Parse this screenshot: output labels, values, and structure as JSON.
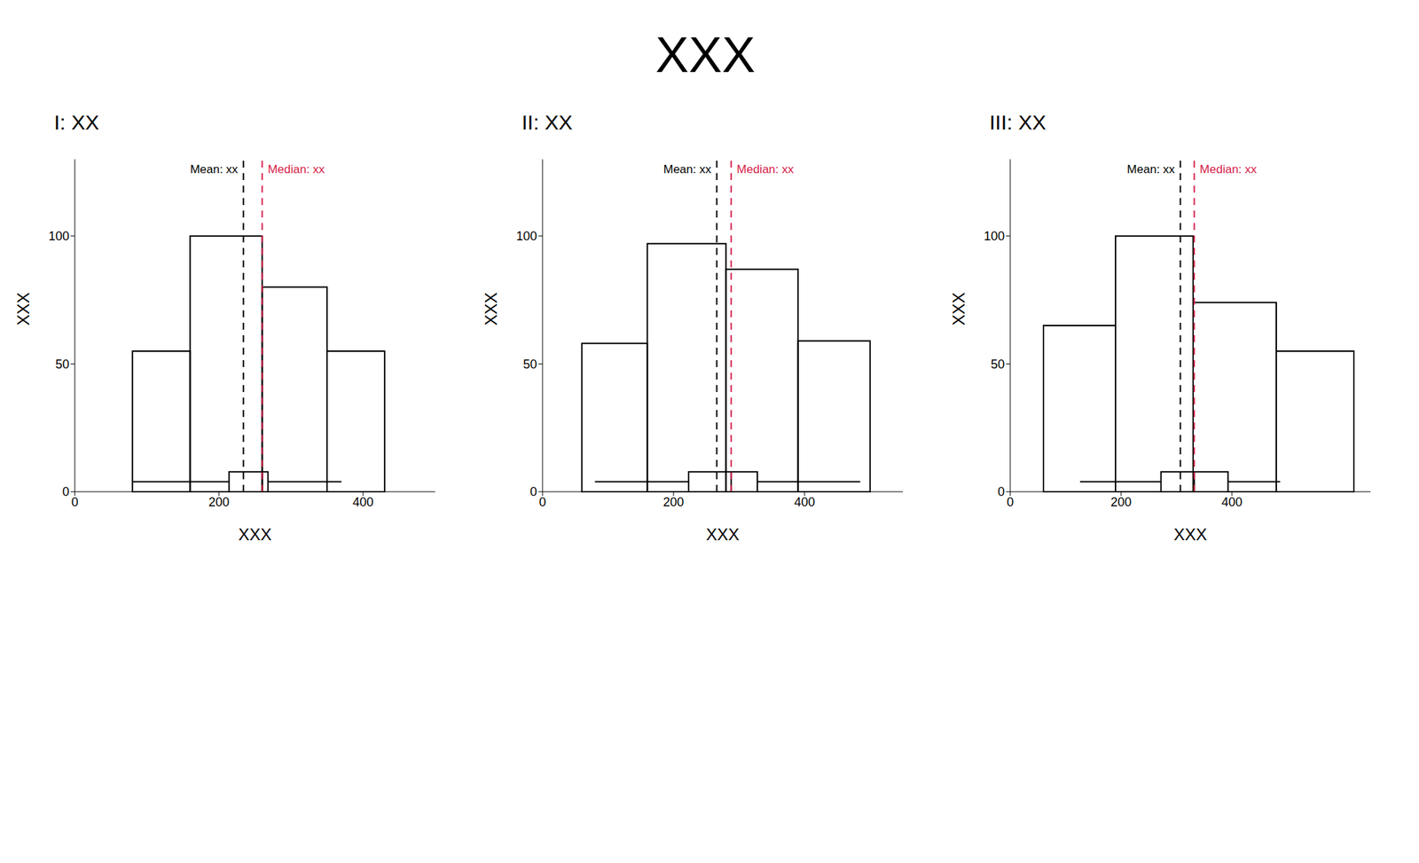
{
  "title": "XXX",
  "chart_data": [
    {
      "type": "histogram",
      "title": "I: XX",
      "x_label": "XXX",
      "y_label": "XXX",
      "color": "#000000",
      "grid": false,
      "bins": [
        80,
        160,
        260,
        350,
        430
      ],
      "counts": [
        55,
        100,
        80,
        55
      ],
      "xlim": [
        0,
        500
      ],
      "xticks": [
        0,
        200,
        400
      ],
      "ylim": [
        0,
        130
      ],
      "yticks": [
        0,
        50,
        100
      ],
      "mean": {
        "label": "Mean: xx",
        "value": 234,
        "color": "#000000"
      },
      "median": {
        "label": "Median: xx",
        "value": 260,
        "color": "#d6204b"
      },
      "box": {
        "min": 80,
        "q1": 214,
        "q3": 268,
        "max": 370
      }
    },
    {
      "type": "histogram",
      "title": "II: XX",
      "x_label": "XXX",
      "y_label": "XXX",
      "color": "#000000",
      "grid": false,
      "bins": [
        60,
        160,
        280,
        390,
        500
      ],
      "counts": [
        58,
        97,
        87,
        59
      ],
      "xlim": [
        0,
        550
      ],
      "xticks": [
        0,
        200,
        400
      ],
      "ylim": [
        0,
        130
      ],
      "yticks": [
        0,
        50,
        100
      ],
      "mean": {
        "label": "Mean: xx",
        "value": 266,
        "color": "#000000"
      },
      "median": {
        "label": "Median: xx",
        "value": 288,
        "color": "#d6204b"
      },
      "box": {
        "min": 80,
        "q1": 223,
        "q3": 328,
        "max": 485
      }
    },
    {
      "type": "histogram",
      "title": "III: XX",
      "x_label": "XXX",
      "y_label": "XXX",
      "color": "#000000",
      "grid": false,
      "bins": [
        60,
        190,
        330,
        480,
        620
      ],
      "counts": [
        65,
        100,
        74,
        55
      ],
      "xlim": [
        0,
        650
      ],
      "xticks": [
        0,
        200,
        400
      ],
      "ylim": [
        0,
        130
      ],
      "yticks": [
        0,
        50,
        100
      ],
      "mean": {
        "label": "Mean: xx",
        "value": 307,
        "color": "#000000"
      },
      "median": {
        "label": "Median: xx",
        "value": 332,
        "color": "#d6204b"
      },
      "box": {
        "min": 126,
        "q1": 272,
        "q3": 393,
        "max": 487
      }
    }
  ]
}
